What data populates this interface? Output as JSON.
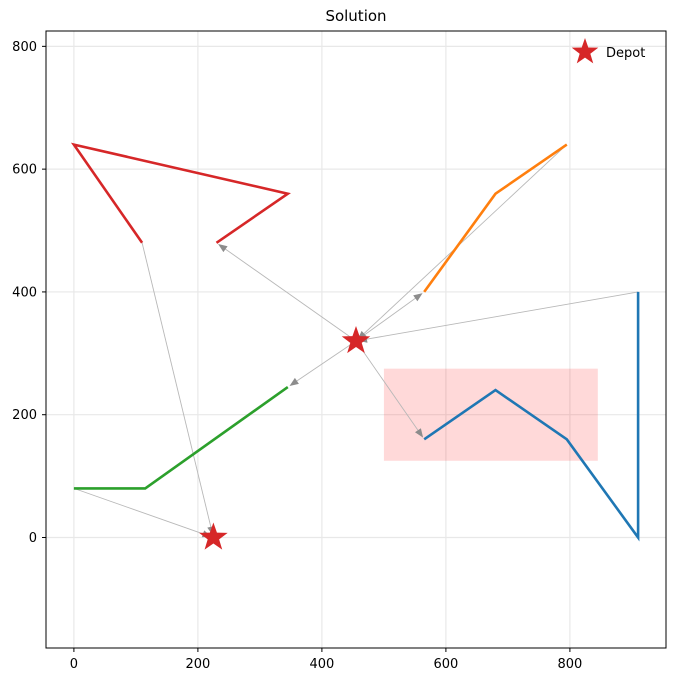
{
  "title": "Solution",
  "legend": {
    "label": "Depot",
    "marker": "star-icon",
    "marker_color": "#d62728"
  },
  "axes": {
    "x_tick_labels": [
      "0",
      "200",
      "400",
      "600",
      "800"
    ],
    "y_tick_labels": [
      "0",
      "200",
      "400",
      "600",
      "800"
    ]
  },
  "colors": {
    "depot": "#d62728",
    "grid": "#e8e8e8",
    "spine": "#000000",
    "connector_line": "#b8b8b8",
    "connector_arrow": "#8c8c8c",
    "region_fill": "#ff0000"
  },
  "chart_data": {
    "type": "line",
    "title": "Solution",
    "xlabel": "",
    "ylabel": "",
    "xlim": [
      -45,
      955
    ],
    "ylim": [
      -180,
      825
    ],
    "x_ticks": [
      0,
      200,
      400,
      600,
      800
    ],
    "y_ticks": [
      0,
      200,
      400,
      600,
      800
    ],
    "grid": true,
    "legend": {
      "label": "Depot",
      "marker": "star",
      "color": "#d62728",
      "location": "upper right"
    },
    "depots": {
      "marker": "star",
      "color": "#d62728",
      "positions": [
        [
          455,
          320
        ],
        [
          225,
          0
        ]
      ]
    },
    "routes": [
      {
        "name": "route-red",
        "color": "#d62728",
        "points": [
          [
            230,
            480
          ],
          [
            345,
            560
          ],
          [
            0,
            640
          ],
          [
            110,
            480
          ]
        ]
      },
      {
        "name": "route-green",
        "color": "#2ca02c",
        "points": [
          [
            345,
            245
          ],
          [
            115,
            80
          ],
          [
            0,
            80
          ]
        ]
      },
      {
        "name": "route-orange",
        "color": "#ff7f0e",
        "points": [
          [
            565,
            400
          ],
          [
            680,
            560
          ],
          [
            795,
            640
          ]
        ]
      },
      {
        "name": "route-blue",
        "color": "#1f77b4",
        "points": [
          [
            565,
            160
          ],
          [
            680,
            240
          ],
          [
            795,
            160
          ],
          [
            910,
            0
          ],
          [
            910,
            400
          ]
        ]
      }
    ],
    "connections": [
      {
        "from": [
          455,
          320
        ],
        "to": [
          230,
          480
        ]
      },
      {
        "from": [
          110,
          480
        ],
        "to": [
          225,
          0
        ]
      },
      {
        "from": [
          455,
          320
        ],
        "to": [
          345,
          245
        ]
      },
      {
        "from": [
          0,
          80
        ],
        "to": [
          225,
          0
        ]
      },
      {
        "from": [
          455,
          320
        ],
        "to": [
          565,
          400
        ]
      },
      {
        "from": [
          795,
          640
        ],
        "to": [
          455,
          320
        ]
      },
      {
        "from": [
          455,
          320
        ],
        "to": [
          565,
          160
        ]
      },
      {
        "from": [
          910,
          400
        ],
        "to": [
          455,
          320
        ]
      }
    ],
    "region": {
      "x0": 500,
      "y0": 125,
      "x1": 845,
      "y1": 275,
      "color": "#ff0000",
      "opacity": 0.15
    }
  }
}
